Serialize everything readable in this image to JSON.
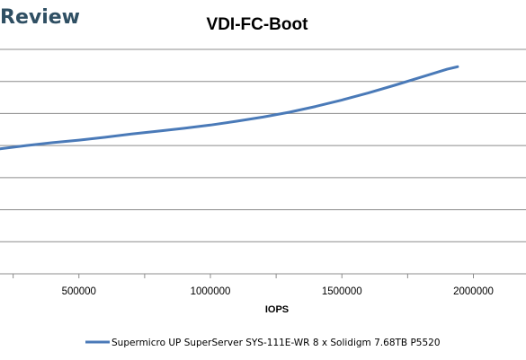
{
  "brand": {
    "text": "Review"
  },
  "chart_data": {
    "type": "line",
    "title": "VDI-FC-Boot",
    "xlabel": "IOPS",
    "ylabel": "",
    "xlim": [
      200000,
      2200000
    ],
    "x_ticks": [
      500000,
      1000000,
      1500000,
      2000000
    ],
    "x_tick_labels": [
      "500000",
      "1000000",
      "1500000",
      "2000000"
    ],
    "ylim": [
      0,
      7
    ],
    "gridlines": 7,
    "grid": true,
    "legend_position": "bottom",
    "series": [
      {
        "name": "Supermicro UP SuperServer SYS-111E-WR 8 x Solidigm 7.68TB P5520",
        "color": "#4a7ab8",
        "points": [
          [
            200000,
            3.9
          ],
          [
            300000,
            4.0
          ],
          [
            400000,
            4.09
          ],
          [
            500000,
            4.17
          ],
          [
            600000,
            4.26
          ],
          [
            700000,
            4.36
          ],
          [
            800000,
            4.45
          ],
          [
            900000,
            4.54
          ],
          [
            1000000,
            4.64
          ],
          [
            1100000,
            4.76
          ],
          [
            1200000,
            4.89
          ],
          [
            1300000,
            5.04
          ],
          [
            1400000,
            5.22
          ],
          [
            1500000,
            5.42
          ],
          [
            1600000,
            5.64
          ],
          [
            1700000,
            5.88
          ],
          [
            1800000,
            6.13
          ],
          [
            1900000,
            6.38
          ],
          [
            1940000,
            6.46
          ]
        ]
      }
    ]
  }
}
